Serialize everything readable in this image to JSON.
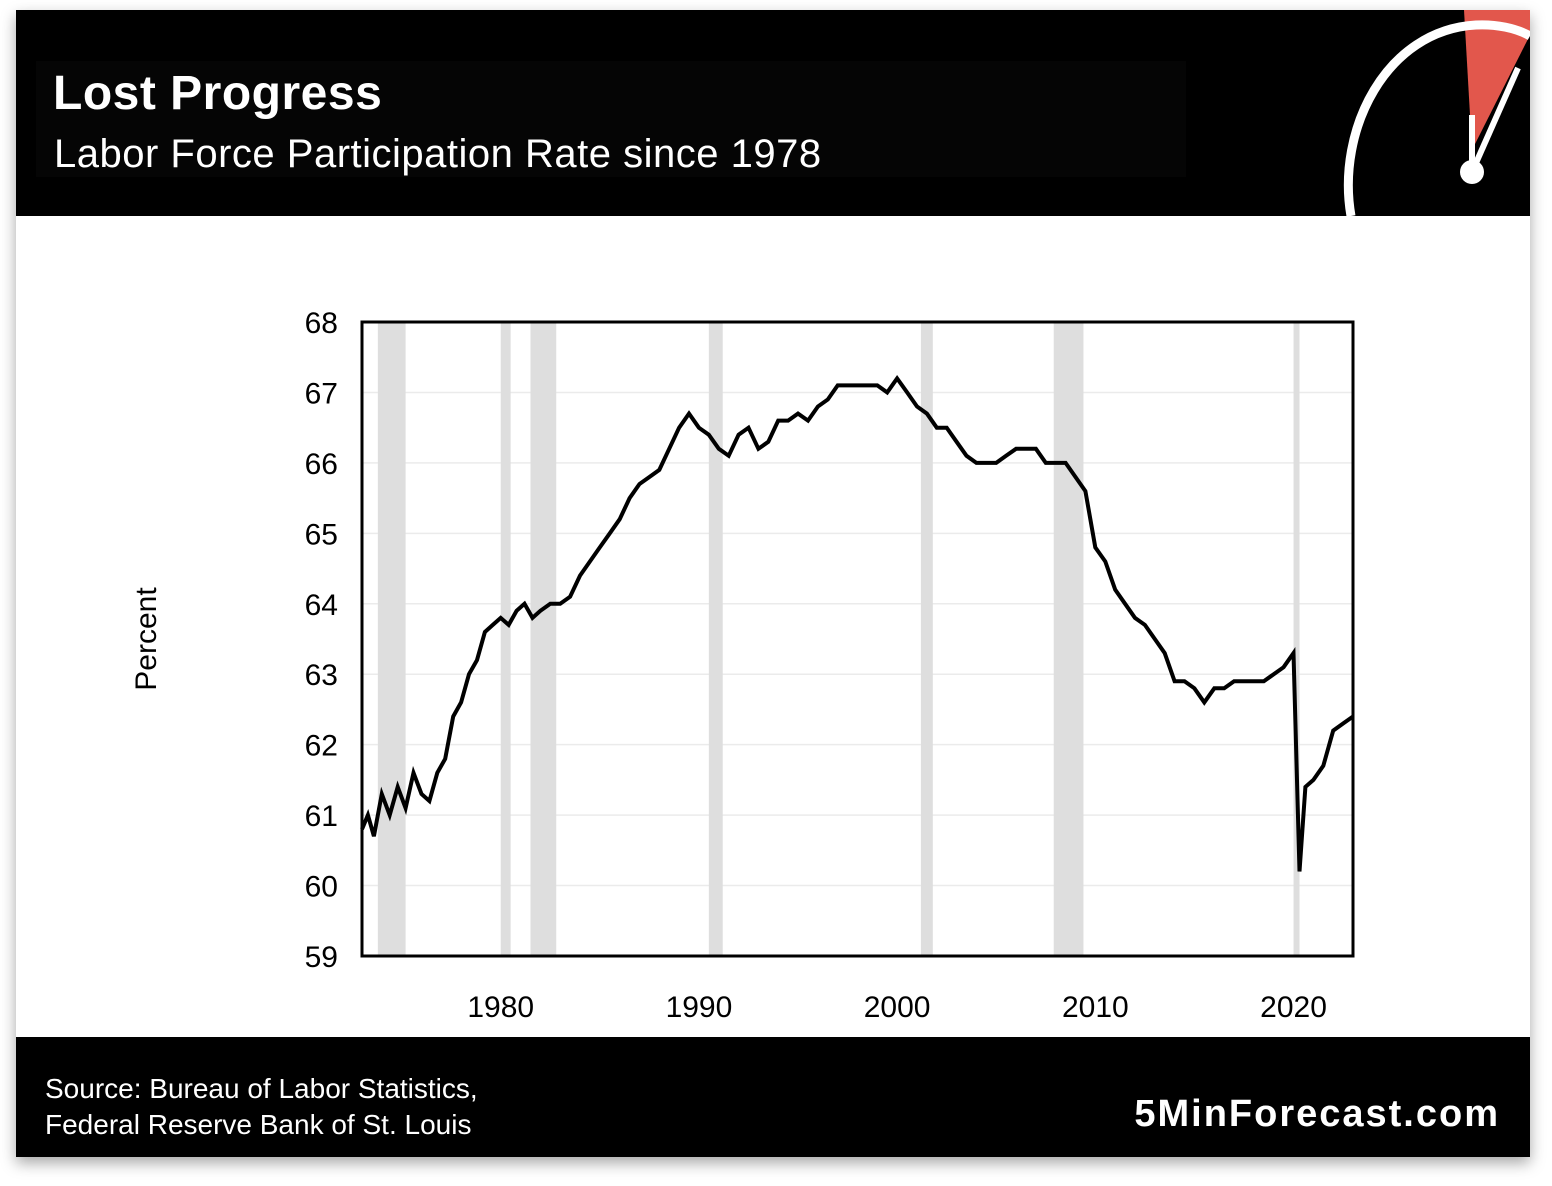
{
  "header": {
    "title": "Lost Progress",
    "subtitle": "Labor Force Participation Rate since 1978"
  },
  "footer": {
    "source_line1": "Source: Bureau of Labor Statistics,",
    "source_line2": "Federal Reserve Bank of St. Louis",
    "brand": "5MinForecast.com"
  },
  "colors": {
    "header_bg": "#000000",
    "line": "#000000",
    "recession_shade": "#dedede",
    "gauge_accent": "#e2574c",
    "gridline": "#ebebeb"
  },
  "chart_data": {
    "type": "line",
    "title": "",
    "xlabel": "",
    "ylabel": "Percent",
    "xlim": [
      1973,
      2023
    ],
    "ylim": [
      59,
      68
    ],
    "x_ticks": [
      1980,
      1990,
      2000,
      2010,
      2020
    ],
    "y_ticks": [
      59,
      60,
      61,
      62,
      63,
      64,
      65,
      66,
      67,
      68
    ],
    "grid": true,
    "recessions": [
      [
        1973.8,
        1975.2
      ],
      [
        1980.0,
        1980.5
      ],
      [
        1981.5,
        1982.8
      ],
      [
        1990.5,
        1991.2
      ],
      [
        2001.2,
        2001.8
      ],
      [
        2007.9,
        2009.4
      ],
      [
        2020.0,
        2020.3
      ]
    ],
    "series": [
      {
        "values": [
          [
            1973.0,
            60.8
          ],
          [
            1973.3,
            61.0
          ],
          [
            1973.6,
            60.7
          ],
          [
            1974.0,
            61.3
          ],
          [
            1974.4,
            61.0
          ],
          [
            1974.8,
            61.4
          ],
          [
            1975.2,
            61.1
          ],
          [
            1975.6,
            61.6
          ],
          [
            1976.0,
            61.3
          ],
          [
            1976.4,
            61.2
          ],
          [
            1976.8,
            61.6
          ],
          [
            1977.2,
            61.8
          ],
          [
            1977.6,
            62.4
          ],
          [
            1978.0,
            62.6
          ],
          [
            1978.4,
            63.0
          ],
          [
            1978.8,
            63.2
          ],
          [
            1979.2,
            63.6
          ],
          [
            1979.6,
            63.7
          ],
          [
            1980.0,
            63.8
          ],
          [
            1980.4,
            63.7
          ],
          [
            1980.8,
            63.9
          ],
          [
            1981.2,
            64.0
          ],
          [
            1981.6,
            63.8
          ],
          [
            1982.0,
            63.9
          ],
          [
            1982.5,
            64.0
          ],
          [
            1983.0,
            64.0
          ],
          [
            1983.5,
            64.1
          ],
          [
            1984.0,
            64.4
          ],
          [
            1984.5,
            64.6
          ],
          [
            1985.0,
            64.8
          ],
          [
            1985.5,
            65.0
          ],
          [
            1986.0,
            65.2
          ],
          [
            1986.5,
            65.5
          ],
          [
            1987.0,
            65.7
          ],
          [
            1987.5,
            65.8
          ],
          [
            1988.0,
            65.9
          ],
          [
            1988.5,
            66.2
          ],
          [
            1989.0,
            66.5
          ],
          [
            1989.5,
            66.7
          ],
          [
            1990.0,
            66.5
          ],
          [
            1990.5,
            66.4
          ],
          [
            1991.0,
            66.2
          ],
          [
            1991.5,
            66.1
          ],
          [
            1992.0,
            66.4
          ],
          [
            1992.5,
            66.5
          ],
          [
            1993.0,
            66.2
          ],
          [
            1993.5,
            66.3
          ],
          [
            1994.0,
            66.6
          ],
          [
            1994.5,
            66.6
          ],
          [
            1995.0,
            66.7
          ],
          [
            1995.5,
            66.6
          ],
          [
            1996.0,
            66.8
          ],
          [
            1996.5,
            66.9
          ],
          [
            1997.0,
            67.1
          ],
          [
            1997.5,
            67.1
          ],
          [
            1998.0,
            67.1
          ],
          [
            1998.5,
            67.1
          ],
          [
            1999.0,
            67.1
          ],
          [
            1999.5,
            67.0
          ],
          [
            2000.0,
            67.2
          ],
          [
            2000.5,
            67.0
          ],
          [
            2001.0,
            66.8
          ],
          [
            2001.5,
            66.7
          ],
          [
            2002.0,
            66.5
          ],
          [
            2002.5,
            66.5
          ],
          [
            2003.0,
            66.3
          ],
          [
            2003.5,
            66.1
          ],
          [
            2004.0,
            66.0
          ],
          [
            2004.5,
            66.0
          ],
          [
            2005.0,
            66.0
          ],
          [
            2005.5,
            66.1
          ],
          [
            2006.0,
            66.2
          ],
          [
            2006.5,
            66.2
          ],
          [
            2007.0,
            66.2
          ],
          [
            2007.5,
            66.0
          ],
          [
            2008.0,
            66.0
          ],
          [
            2008.5,
            66.0
          ],
          [
            2009.0,
            65.8
          ],
          [
            2009.5,
            65.6
          ],
          [
            2010.0,
            64.8
          ],
          [
            2010.5,
            64.6
          ],
          [
            2011.0,
            64.2
          ],
          [
            2011.5,
            64.0
          ],
          [
            2012.0,
            63.8
          ],
          [
            2012.5,
            63.7
          ],
          [
            2013.0,
            63.5
          ],
          [
            2013.5,
            63.3
          ],
          [
            2014.0,
            62.9
          ],
          [
            2014.5,
            62.9
          ],
          [
            2015.0,
            62.8
          ],
          [
            2015.5,
            62.6
          ],
          [
            2016.0,
            62.8
          ],
          [
            2016.5,
            62.8
          ],
          [
            2017.0,
            62.9
          ],
          [
            2017.5,
            62.9
          ],
          [
            2018.0,
            62.9
          ],
          [
            2018.5,
            62.9
          ],
          [
            2019.0,
            63.0
          ],
          [
            2019.5,
            63.1
          ],
          [
            2020.0,
            63.3
          ],
          [
            2020.3,
            60.2
          ],
          [
            2020.6,
            61.4
          ],
          [
            2021.0,
            61.5
          ],
          [
            2021.5,
            61.7
          ],
          [
            2022.0,
            62.2
          ],
          [
            2022.5,
            62.3
          ],
          [
            2023.0,
            62.4
          ]
        ]
      }
    ]
  }
}
